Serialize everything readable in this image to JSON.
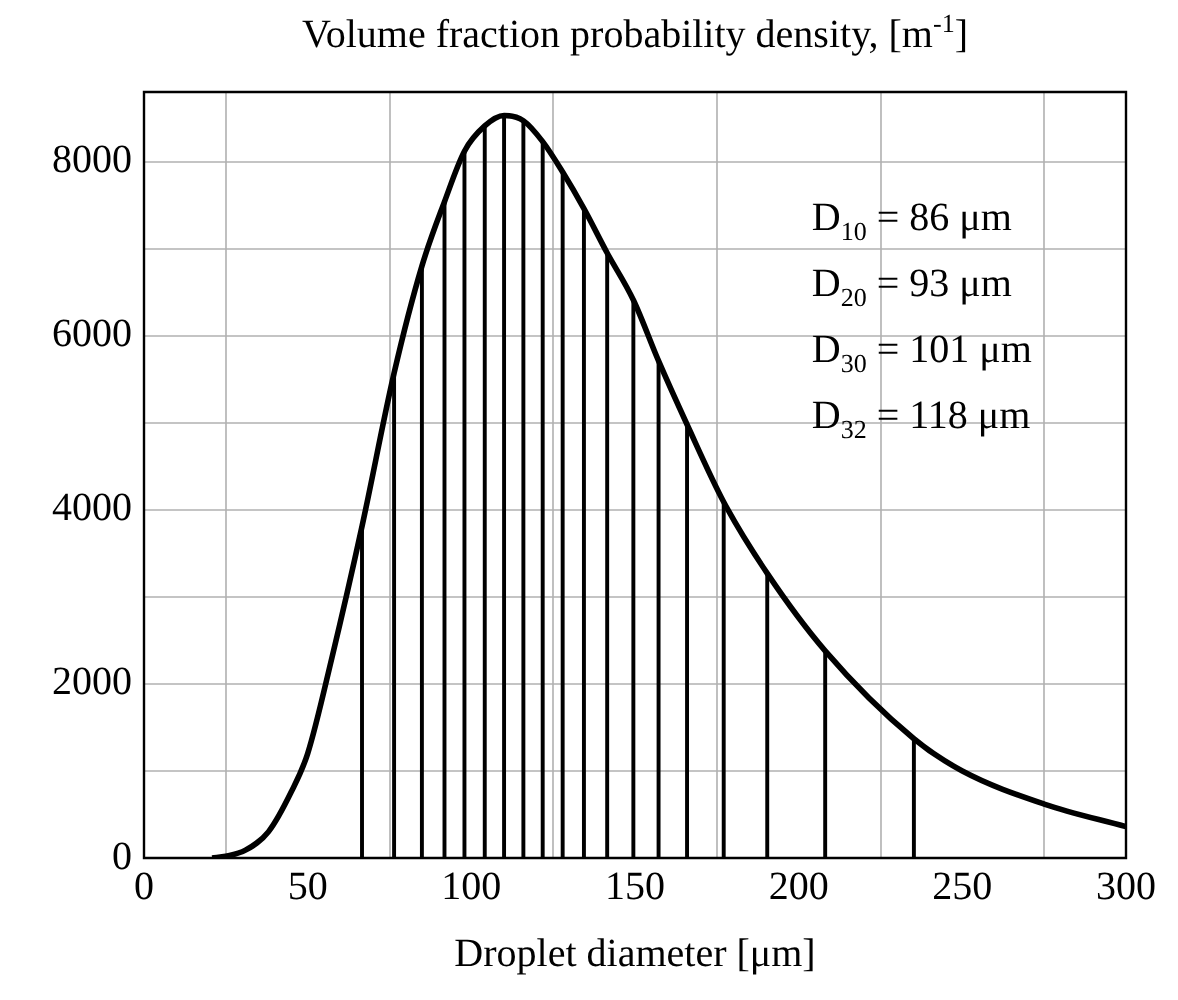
{
  "chart_data": {
    "type": "line",
    "title": "Volume fraction probability density, [m$^{-1}$]",
    "xlabel": "Droplet diameter [μm]",
    "xlim": [
      0,
      300
    ],
    "xticks": [
      0,
      50,
      100,
      150,
      200,
      250,
      300
    ],
    "ylim": [
      0,
      8800
    ],
    "yticks": [
      0,
      {
        "value": 1000,
        "label": null
      },
      2000,
      {
        "value": 3000,
        "label": null
      },
      4000,
      {
        "value": 5000,
        "label": null
      },
      6000,
      {
        "value": 7000,
        "label": null
      },
      8000
    ],
    "grid": true,
    "legend": false,
    "marker": "none",
    "line_style": "solid",
    "annotations": [
      "D$_{10}$ = 86 μm",
      "D$_{20}$ = 93 μm",
      "D$_{30}$ = 101 μm",
      "D$_{32}$ = 118 μm"
    ],
    "series": [
      {
        "color": "#000000",
        "x": [
          20.8,
          25,
          31,
          38,
          45,
          50,
          57.4,
          66.6,
          76.4,
          84.9,
          91.8,
          97.9,
          104.1,
          110,
          115.9,
          121.8,
          127.9,
          134.4,
          141.5,
          149.5,
          157.2,
          165.9,
          177.1,
          190.4,
          208.1,
          235.2,
          250,
          275,
          300
        ],
        "values": [
          0,
          20,
          90,
          300,
          760,
          1200,
          2300,
          3810,
          5570,
          6800,
          7540,
          8120,
          8410,
          8530,
          8470,
          8230,
          7880,
          7460,
          6950,
          6410,
          5710,
          4980,
          4090,
          3270,
          2380,
          1370,
          1000,
          620,
          360
        ]
      },
      {
        "type": "bar",
        "color": "#000000",
        "x": [
          66.6,
          76.4,
          84.9,
          91.8,
          97.9,
          104.1,
          110,
          115.9,
          121.8,
          127.9,
          134.4,
          141.5,
          149.5,
          157.2,
          165.9,
          177.1,
          190.4,
          208.1,
          235.2
        ],
        "values": [
          3810,
          5570,
          6800,
          7540,
          8120,
          8410,
          8530,
          8470,
          8230,
          7880,
          7460,
          6950,
          6410,
          5710,
          4980,
          4090,
          3270,
          2380,
          1370
        ]
      }
    ]
  }
}
